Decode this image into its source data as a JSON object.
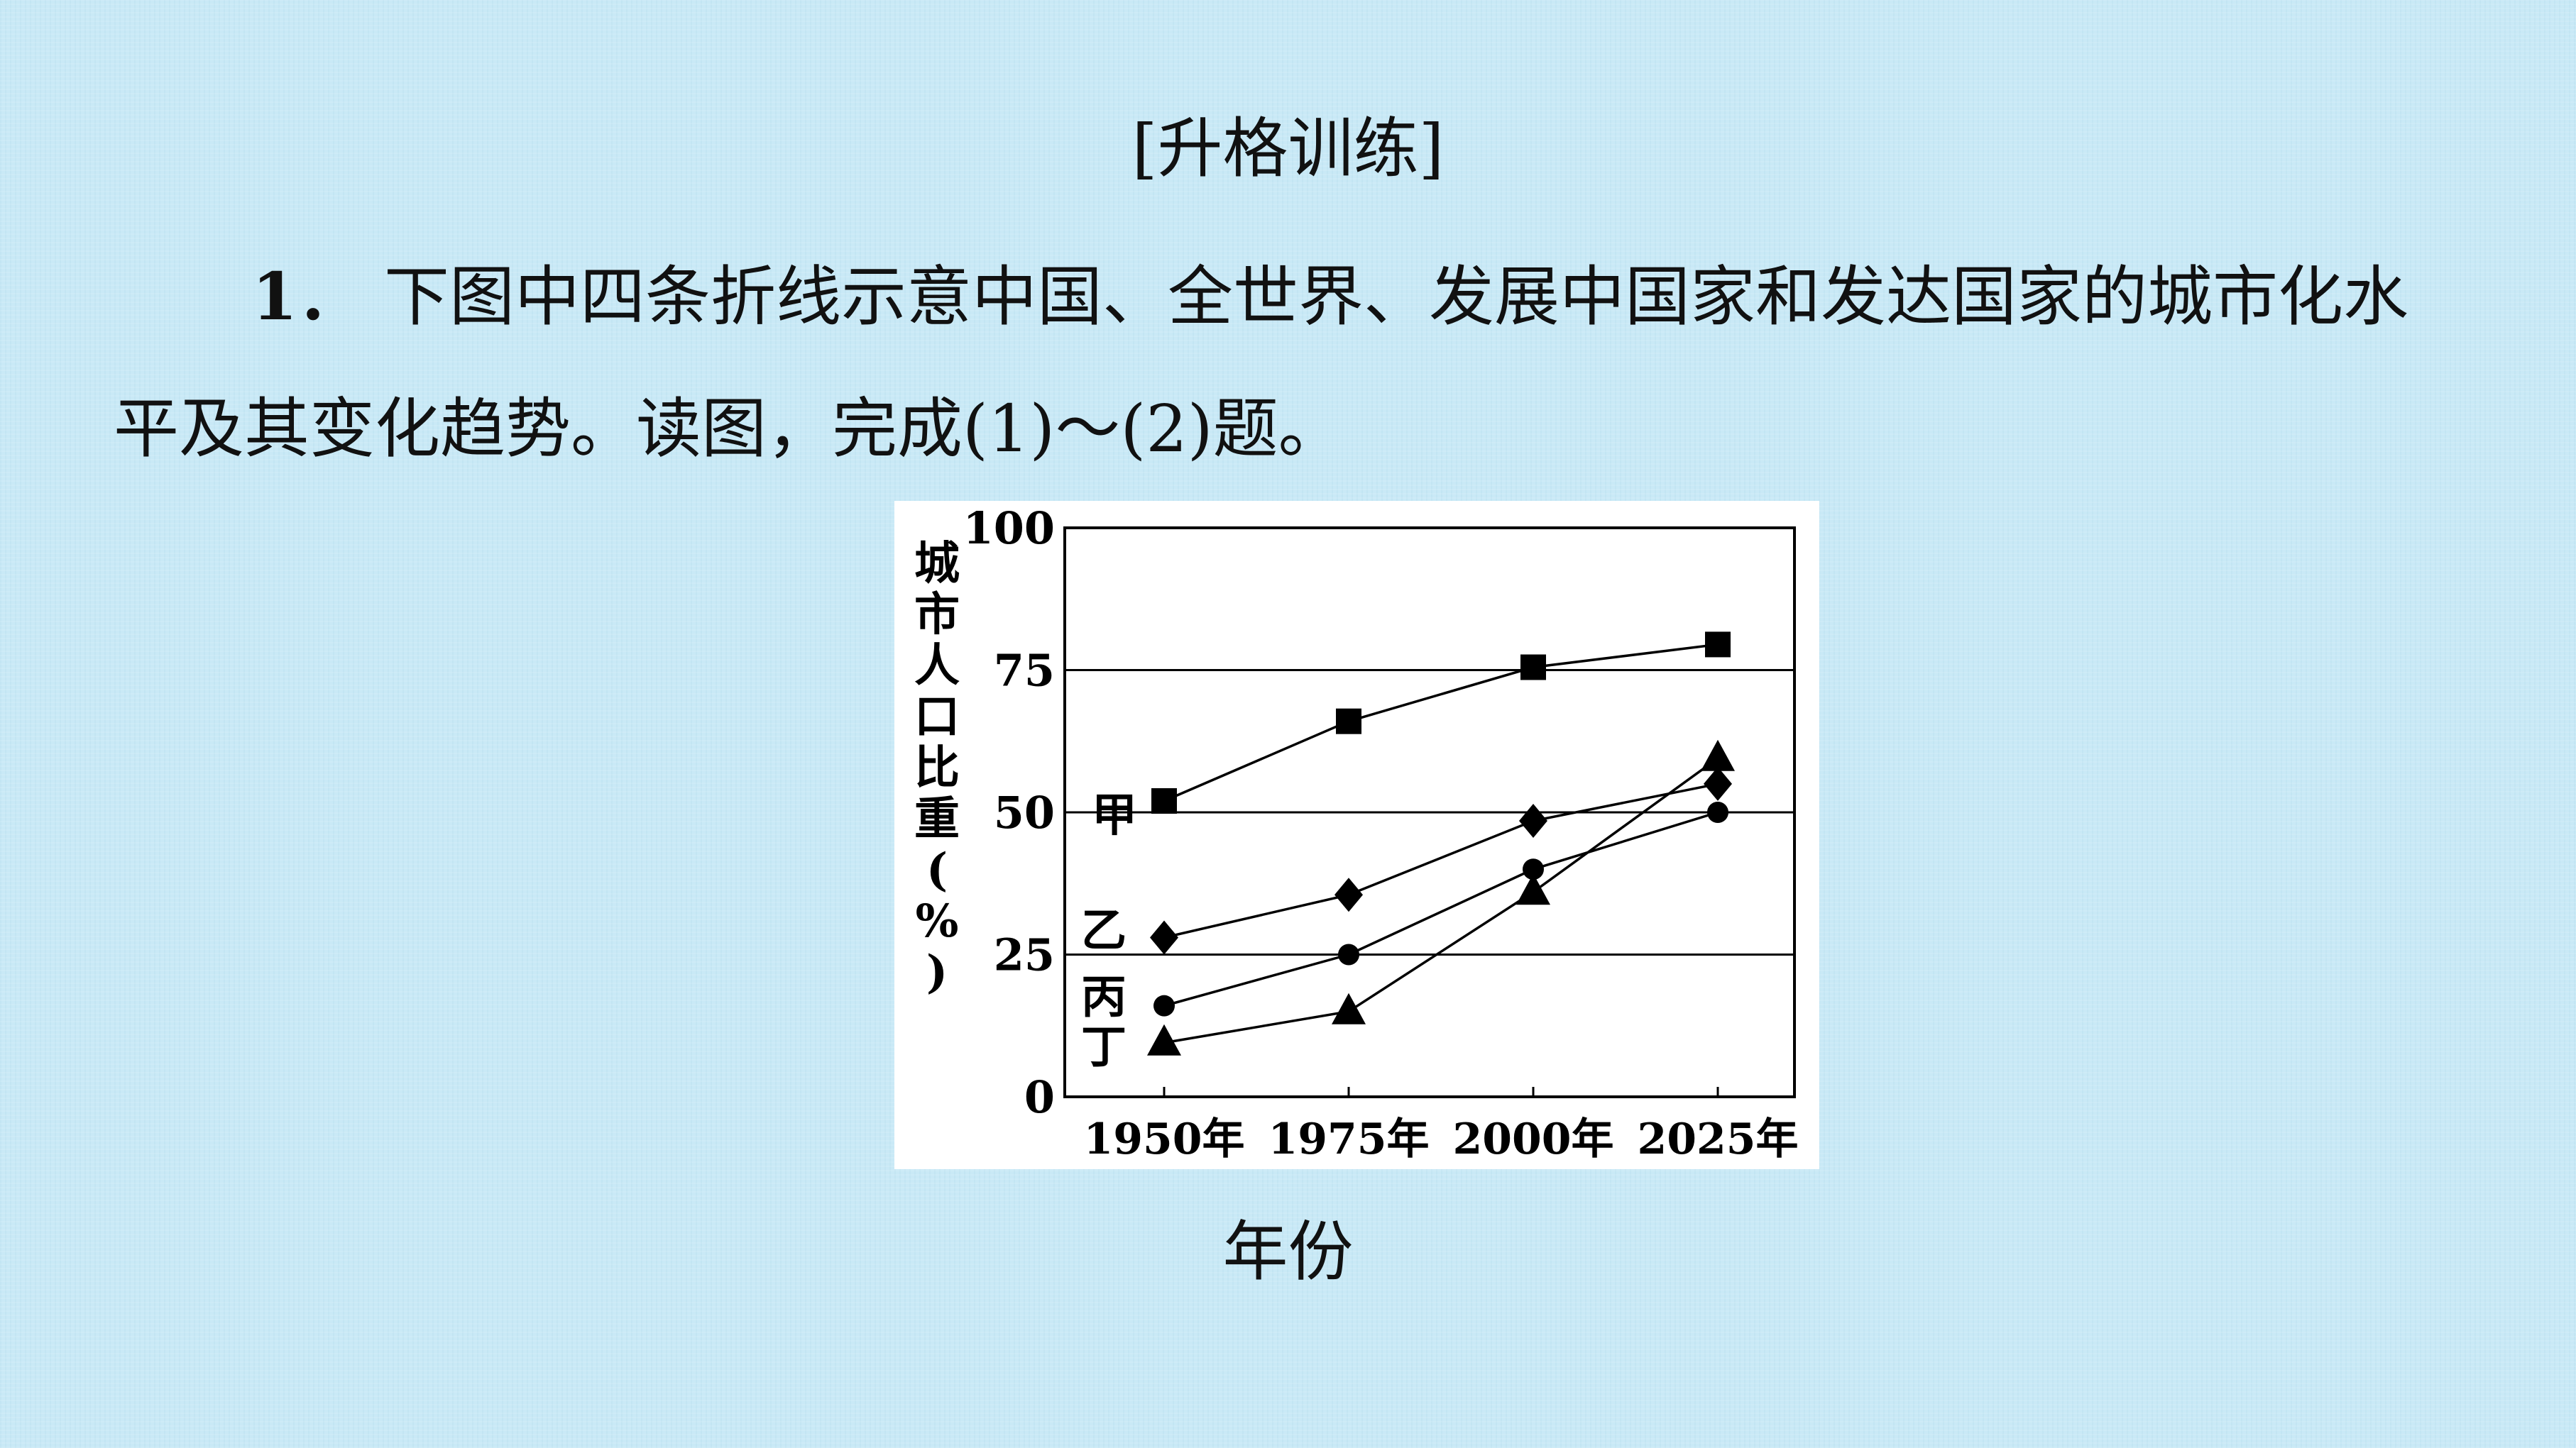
{
  "heading": "[升格训练]",
  "question": {
    "number": "1．",
    "text": "下图中四条折线示意中国、全世界、发展中国家和发达国家的城市化水平及其变化趋势。读图，完成(1)～(2)题。"
  },
  "chart_data": {
    "type": "line",
    "ylabel": "城市人口比重(%)",
    "xlabel": "年份",
    "x": [
      "1950年",
      "1975年",
      "2000年",
      "2025年"
    ],
    "ylim": [
      0,
      100
    ],
    "yticks": [
      0,
      25,
      50,
      75,
      100
    ],
    "grid_y": [
      25,
      50,
      75
    ],
    "series": [
      {
        "name": "甲",
        "marker": "square",
        "values": [
          52,
          66,
          75.5,
          79.5
        ]
      },
      {
        "name": "乙",
        "marker": "diamond",
        "values": [
          28,
          35.5,
          48.5,
          55
        ]
      },
      {
        "name": "丙",
        "marker": "circle",
        "values": [
          16,
          25,
          40,
          50
        ]
      },
      {
        "name": "丁",
        "marker": "triangle",
        "values": [
          9.5,
          15,
          36,
          59.5
        ]
      }
    ],
    "colors": {
      "line": "#000000",
      "background": "#ffffff"
    }
  }
}
